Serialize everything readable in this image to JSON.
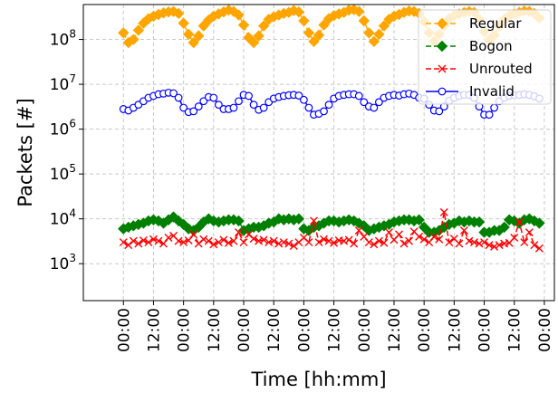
{
  "chart_data": {
    "type": "line",
    "title": "",
    "xlabel": "Time [hh:mm]",
    "ylabel": "Packets [#]",
    "y_scale": "log",
    "ylim": [
      150,
      600000000
    ],
    "y_ticks": [
      {
        "value": 1000,
        "base": "10",
        "exp": "3"
      },
      {
        "value": 10000,
        "base": "10",
        "exp": "4"
      },
      {
        "value": 100000,
        "base": "10",
        "exp": "5"
      },
      {
        "value": 1000000,
        "base": "10",
        "exp": "6"
      },
      {
        "value": 10000000,
        "base": "10",
        "exp": "7"
      },
      {
        "value": 100000000,
        "base": "10",
        "exp": "8"
      }
    ],
    "x_unit": "hours",
    "xlim": [
      -16,
      172
    ],
    "x_ticks": [
      {
        "value": 0,
        "label": "00:00"
      },
      {
        "value": 12,
        "label": "12:00"
      },
      {
        "value": 24,
        "label": "00:00"
      },
      {
        "value": 36,
        "label": "12:00"
      },
      {
        "value": 48,
        "label": "00:00"
      },
      {
        "value": 60,
        "label": "12:00"
      },
      {
        "value": 72,
        "label": "00:00"
      },
      {
        "value": 84,
        "label": "12:00"
      },
      {
        "value": 96,
        "label": "00:00"
      },
      {
        "value": 108,
        "label": "12:00"
      },
      {
        "value": 120,
        "label": "00:00"
      },
      {
        "value": 132,
        "label": "12:00"
      },
      {
        "value": 144,
        "label": "00:00"
      },
      {
        "value": 156,
        "label": "12:00"
      },
      {
        "value": 168,
        "label": "00:00"
      }
    ],
    "grid": true,
    "legend_position": "top-right",
    "x": [
      0,
      2,
      4,
      6,
      8,
      10,
      12,
      14,
      16,
      18,
      20,
      22,
      24,
      26,
      28,
      30,
      32,
      34,
      36,
      38,
      40,
      42,
      44,
      46,
      48,
      50,
      52,
      54,
      56,
      58,
      60,
      62,
      64,
      66,
      68,
      70,
      72,
      74,
      76,
      78,
      80,
      82,
      84,
      86,
      88,
      90,
      92,
      94,
      96,
      98,
      100,
      102,
      104,
      106,
      108,
      110,
      112,
      114,
      116,
      118,
      120,
      122,
      124,
      126,
      128,
      130,
      132,
      134,
      136,
      138,
      140,
      142,
      144,
      146,
      148,
      150,
      152,
      154,
      156,
      158,
      160,
      162,
      164,
      166
    ],
    "series": [
      {
        "name": "Regular",
        "color": "#ffa500",
        "marker": "diamond",
        "values": [
          140000000,
          85000000,
          100000000,
          160000000,
          230000000,
          290000000,
          330000000,
          360000000,
          390000000,
          410000000,
          420000000,
          380000000,
          230000000,
          130000000,
          85000000,
          120000000,
          200000000,
          270000000,
          330000000,
          370000000,
          410000000,
          450000000,
          420000000,
          350000000,
          210000000,
          110000000,
          85000000,
          120000000,
          200000000,
          280000000,
          320000000,
          350000000,
          380000000,
          400000000,
          440000000,
          410000000,
          260000000,
          140000000,
          90000000,
          125000000,
          210000000,
          290000000,
          340000000,
          370000000,
          400000000,
          450000000,
          460000000,
          420000000,
          260000000,
          140000000,
          90000000,
          130000000,
          200000000,
          280000000,
          330000000,
          360000000,
          400000000,
          430000000,
          420000000,
          380000000,
          250000000,
          140000000,
          90000000,
          130000000,
          200000000,
          290000000,
          340000000,
          370000000,
          400000000,
          420000000,
          400000000,
          280000000,
          150000000,
          95000000,
          125000000,
          200000000,
          280000000,
          340000000,
          370000000,
          400000000,
          430000000,
          420000000,
          380000000,
          300000000
        ]
      },
      {
        "name": "Bogon",
        "color": "#008000",
        "marker": "diamond",
        "values": [
          6000,
          6500,
          7000,
          7500,
          8000,
          9000,
          9500,
          9000,
          8000,
          9500,
          11000,
          9000,
          7500,
          6000,
          5500,
          6500,
          8500,
          10000,
          9000,
          8500,
          9000,
          9500,
          9500,
          9000,
          5500,
          6000,
          6500,
          6500,
          7000,
          8000,
          8500,
          10000,
          9500,
          10000,
          9500,
          10000,
          6000,
          5500,
          6500,
          7000,
          8000,
          9000,
          9000,
          8500,
          9000,
          9500,
          9000,
          8000,
          7000,
          5500,
          6000,
          6500,
          7000,
          7500,
          8500,
          9000,
          9500,
          9500,
          9000,
          9500,
          6500,
          5000,
          5000,
          5500,
          6500,
          7500,
          8000,
          9000,
          8500,
          9000,
          8500,
          8500,
          5000,
          5000,
          5500,
          5500,
          6500,
          9500,
          9000,
          8000,
          9500,
          10000,
          9000,
          8000
        ]
      },
      {
        "name": "Unrouted",
        "color": "#ff0000",
        "marker": "x",
        "values": [
          3000,
          2600,
          3200,
          2800,
          3300,
          3000,
          3500,
          3200,
          2800,
          3800,
          4200,
          3200,
          3000,
          3300,
          4500,
          2800,
          3500,
          3200,
          2700,
          3000,
          3400,
          2900,
          3200,
          5000,
          3000,
          4500,
          3600,
          3200,
          3400,
          3000,
          3200,
          2800,
          3000,
          2800,
          2500,
          3000,
          3800,
          3000,
          9000,
          3000,
          3500,
          3200,
          2900,
          3300,
          3200,
          3400,
          2800,
          5500,
          4000,
          3000,
          2700,
          3200,
          2900,
          5000,
          3400,
          4500,
          2800,
          3200,
          5200,
          4000,
          3500,
          3000,
          4000,
          3500,
          14000,
          3000,
          3600,
          2800,
          5500,
          3200,
          3000,
          2800,
          3000,
          2600,
          2400,
          2600,
          2800,
          2900,
          3800,
          8500,
          3000,
          5000,
          2600,
          2200
        ]
      },
      {
        "name": "Invalid",
        "color": "#0000ff",
        "marker": "circle-open",
        "values": [
          2800000,
          2600000,
          3000000,
          3500000,
          4200000,
          5000000,
          5500000,
          6000000,
          6200000,
          6500000,
          6300000,
          5000000,
          3000000,
          2400000,
          2500000,
          3200000,
          4200000,
          5200000,
          5000000,
          3500000,
          2800000,
          2800000,
          3000000,
          4200000,
          5800000,
          5500000,
          3500000,
          2700000,
          3000000,
          4000000,
          4800000,
          5200000,
          5500000,
          5700000,
          5800000,
          5600000,
          4500000,
          3000000,
          2100000,
          2200000,
          2500000,
          3500000,
          4800000,
          5500000,
          5800000,
          6000000,
          6000000,
          5500000,
          4000000,
          3200000,
          3000000,
          4000000,
          5000000,
          5500000,
          5800000,
          5600000,
          6000000,
          6200000,
          5800000,
          5000000,
          4800000,
          3500000,
          2600000,
          2500000,
          3200000,
          4300000,
          5000000,
          5500000,
          5800000,
          5800000,
          5000000,
          3200000,
          2100000,
          2100000,
          3000000,
          4200000,
          5000000,
          5500000,
          5700000,
          5800000,
          6000000,
          5800000,
          5400000,
          4800000
        ]
      }
    ]
  }
}
